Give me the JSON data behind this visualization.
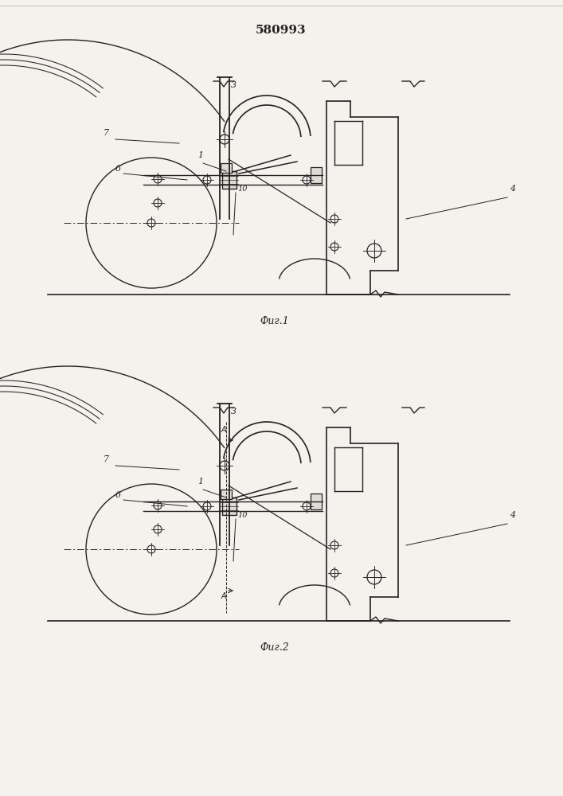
{
  "title": "580993",
  "fig1_label": "Фиг.1",
  "fig2_label": "Фиг.2",
  "bg_color": "#f5f2ee",
  "line_color": "#222222",
  "title_fontsize": 11,
  "annotation_fontsize": 8
}
